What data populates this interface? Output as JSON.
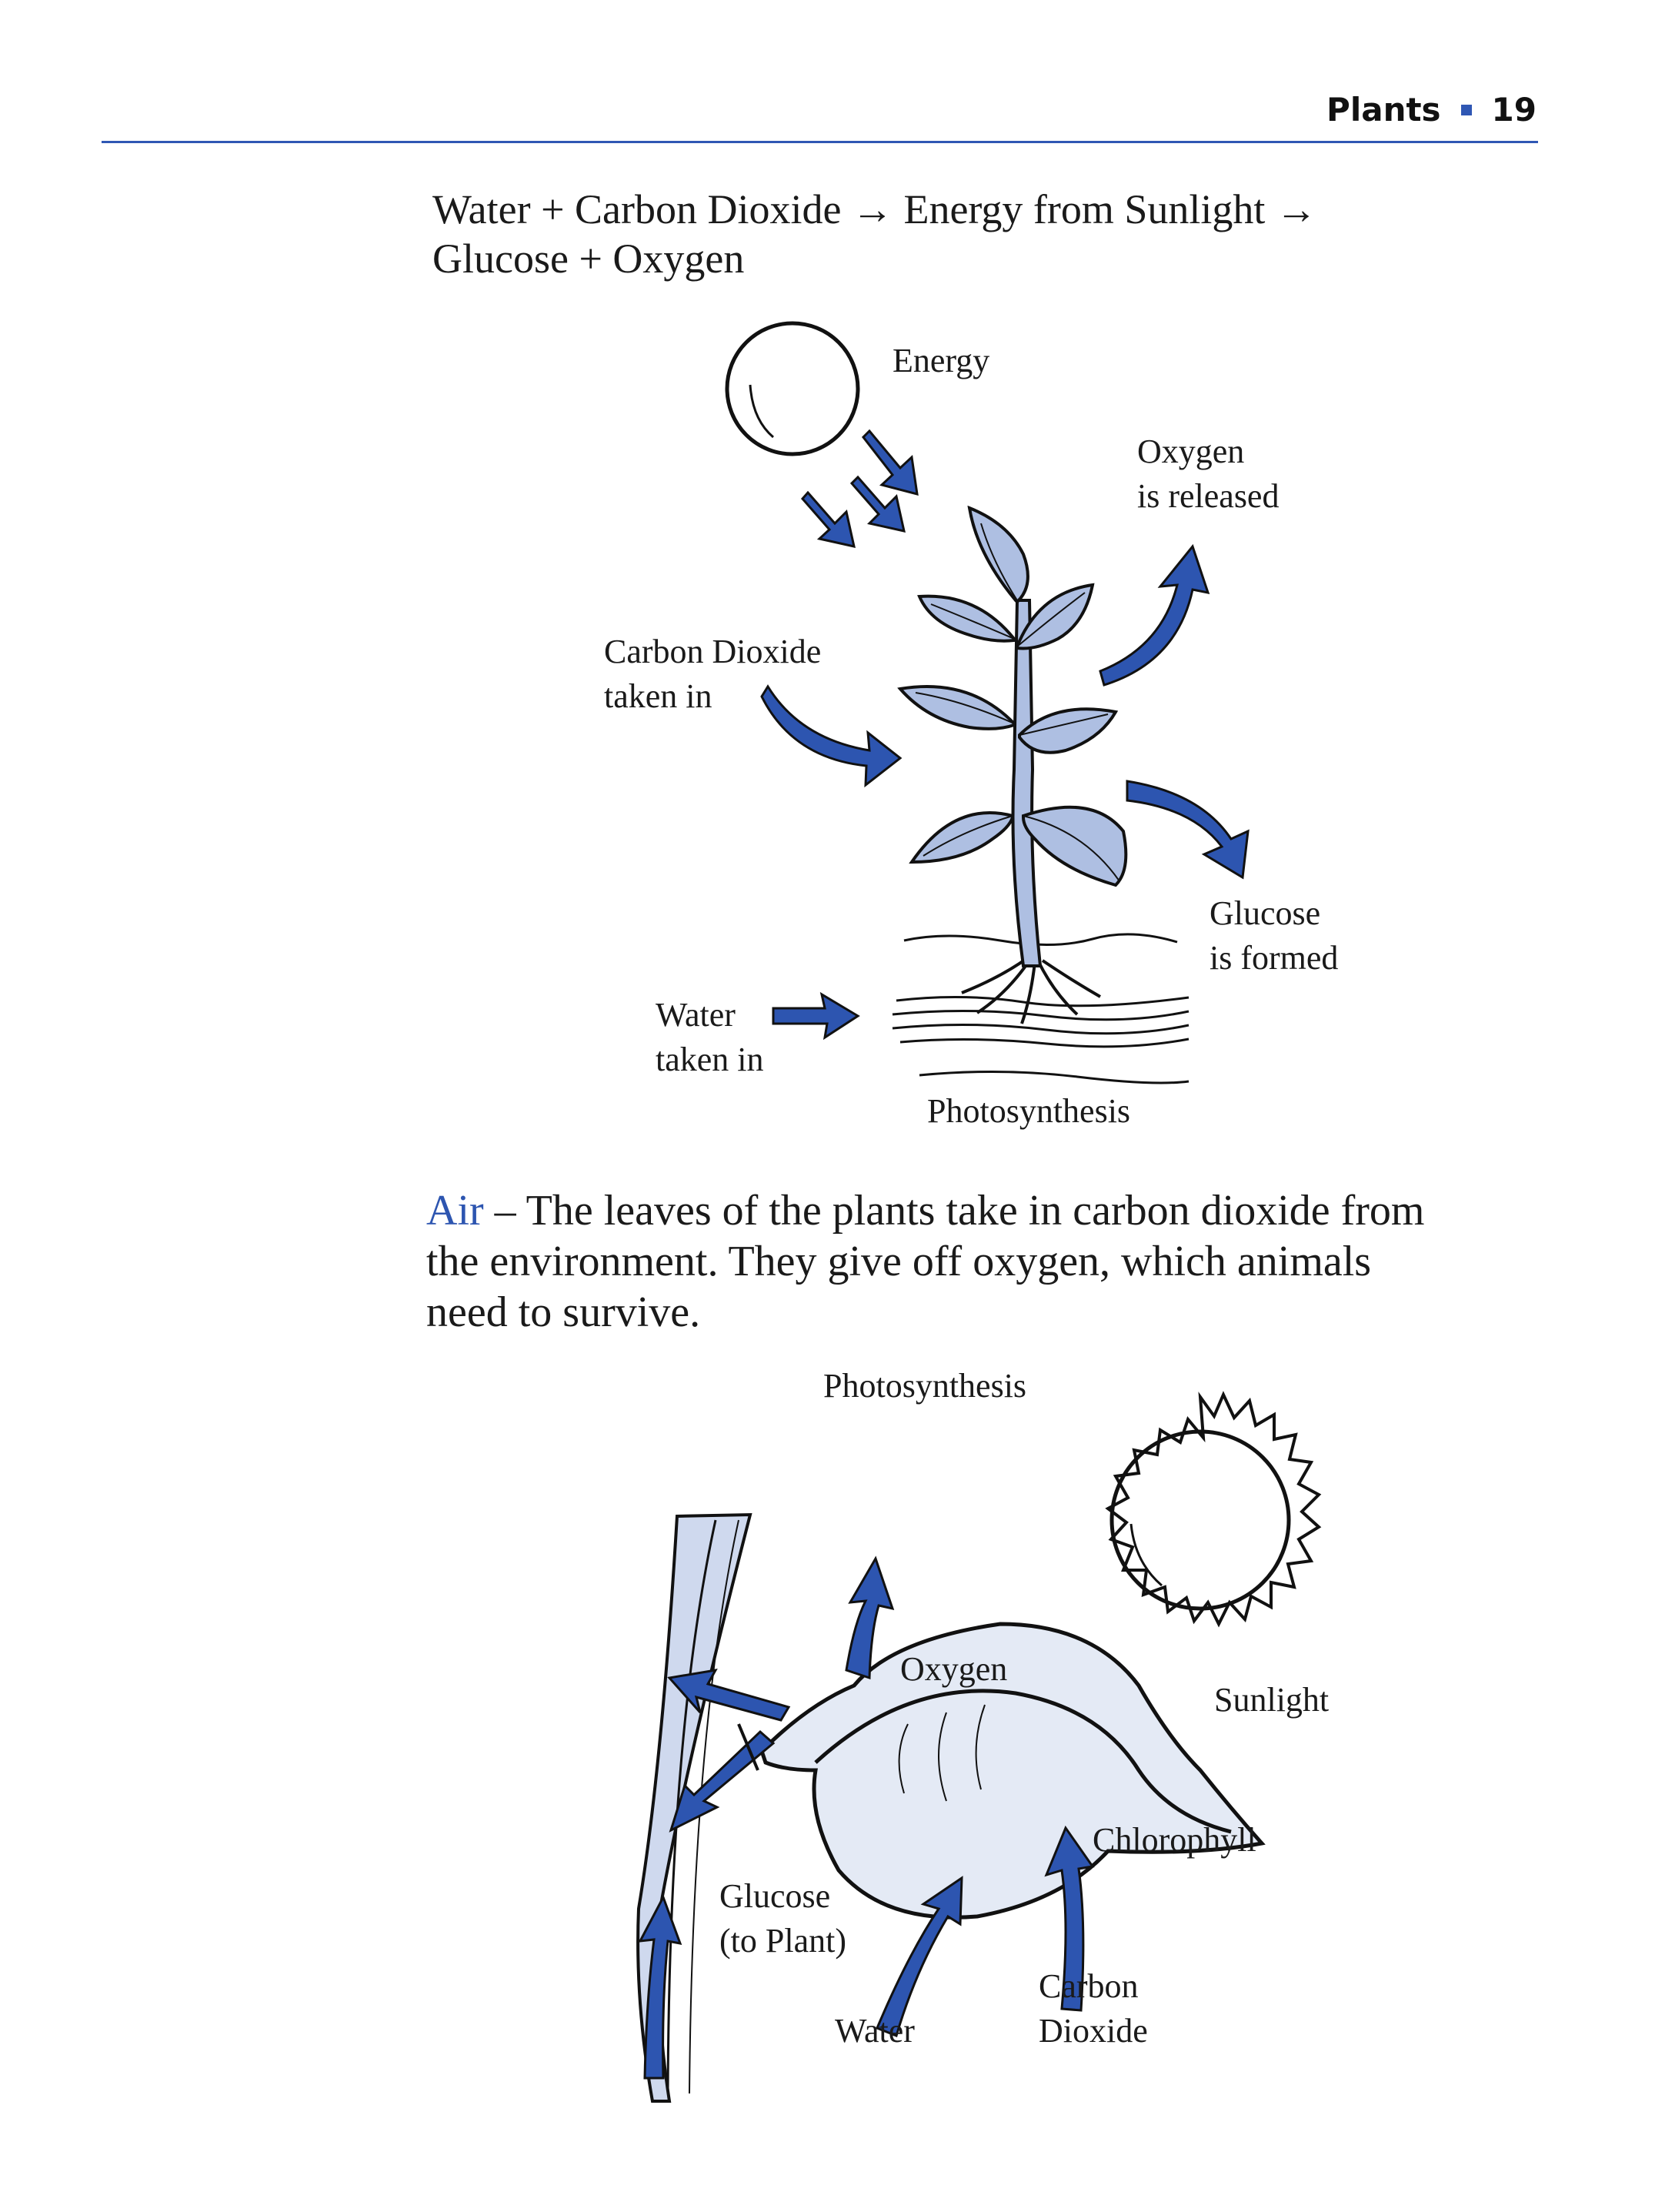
{
  "header": {
    "section": "Plants",
    "page_number": "19"
  },
  "equation": {
    "line1": "Water + Carbon Dioxide → Energy from Sunlight →",
    "line2": "Glucose + Oxygen"
  },
  "diagram1": {
    "energy": "Energy",
    "oxygen_line1": "Oxygen",
    "oxygen_line2": "is released",
    "co2_line1": "Carbon Dioxide",
    "co2_line2": "taken in",
    "glucose_line1": "Glucose",
    "glucose_line2": "is formed",
    "water_line1": "Water",
    "water_line2": "taken in",
    "caption": "Photosynthesis"
  },
  "paragraph": {
    "lead": "Air",
    "line1": " – The leaves of the plants take in carbon dioxide from",
    "line2": "the environment. They give off oxygen, which animals",
    "line3": "need to survive."
  },
  "diagram2": {
    "title": "Photosynthesis",
    "oxygen": "Oxygen",
    "sunlight": "Sunlight",
    "chlorophyll": "Chlorophyll",
    "glucose_line1": "Glucose",
    "glucose_line2": "(to Plant)",
    "water": "Water",
    "carbon_line1": "Carbon",
    "carbon_line2": "Dioxide"
  },
  "colors": {
    "accent_blue": "#2d55b0",
    "leaf_fill": "#aebfe2",
    "outline": "#111111"
  }
}
